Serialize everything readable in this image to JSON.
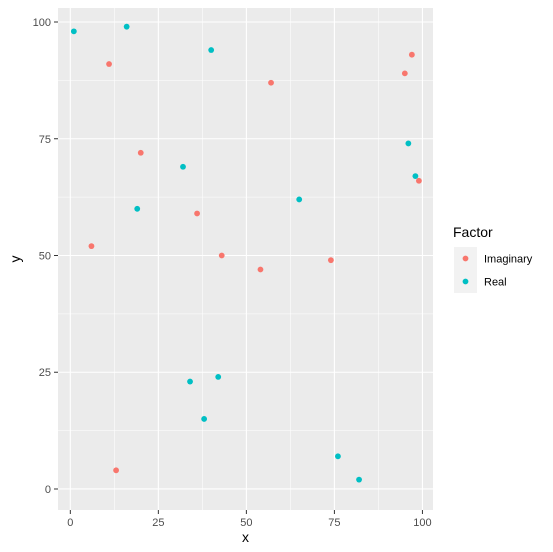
{
  "chart_data": {
    "type": "scatter",
    "title": "",
    "xlabel": "x",
    "ylabel": "y",
    "xlim": [
      -3.5,
      103
    ],
    "ylim": [
      -4.5,
      103
    ],
    "x_ticks": [
      0,
      25,
      50,
      75,
      100
    ],
    "y_ticks": [
      0,
      25,
      50,
      75,
      100
    ],
    "x_tick_labels": [
      "0",
      "25",
      "50",
      "75",
      "100"
    ],
    "y_tick_labels": [
      "0",
      "25",
      "50",
      "75",
      "100"
    ],
    "grid": true,
    "legend": {
      "title": "Factor",
      "position": "right"
    },
    "series": [
      {
        "name": "Imaginary",
        "color": "#F8766D",
        "points": [
          {
            "x": 6,
            "y": 52
          },
          {
            "x": 11,
            "y": 91
          },
          {
            "x": 13,
            "y": 4
          },
          {
            "x": 20,
            "y": 72
          },
          {
            "x": 36,
            "y": 59
          },
          {
            "x": 43,
            "y": 50
          },
          {
            "x": 54,
            "y": 47
          },
          {
            "x": 57,
            "y": 87
          },
          {
            "x": 74,
            "y": 49
          },
          {
            "x": 95,
            "y": 89
          },
          {
            "x": 97,
            "y": 93
          },
          {
            "x": 99,
            "y": 66
          }
        ]
      },
      {
        "name": "Real",
        "color": "#00BFC4",
        "points": [
          {
            "x": 1,
            "y": 98
          },
          {
            "x": 16,
            "y": 99
          },
          {
            "x": 19,
            "y": 60
          },
          {
            "x": 32,
            "y": 69
          },
          {
            "x": 34,
            "y": 23
          },
          {
            "x": 38,
            "y": 15
          },
          {
            "x": 40,
            "y": 94
          },
          {
            "x": 42,
            "y": 24
          },
          {
            "x": 65,
            "y": 62
          },
          {
            "x": 76,
            "y": 7
          },
          {
            "x": 82,
            "y": 2
          },
          {
            "x": 96,
            "y": 74
          },
          {
            "x": 98,
            "y": 67
          }
        ]
      }
    ]
  }
}
